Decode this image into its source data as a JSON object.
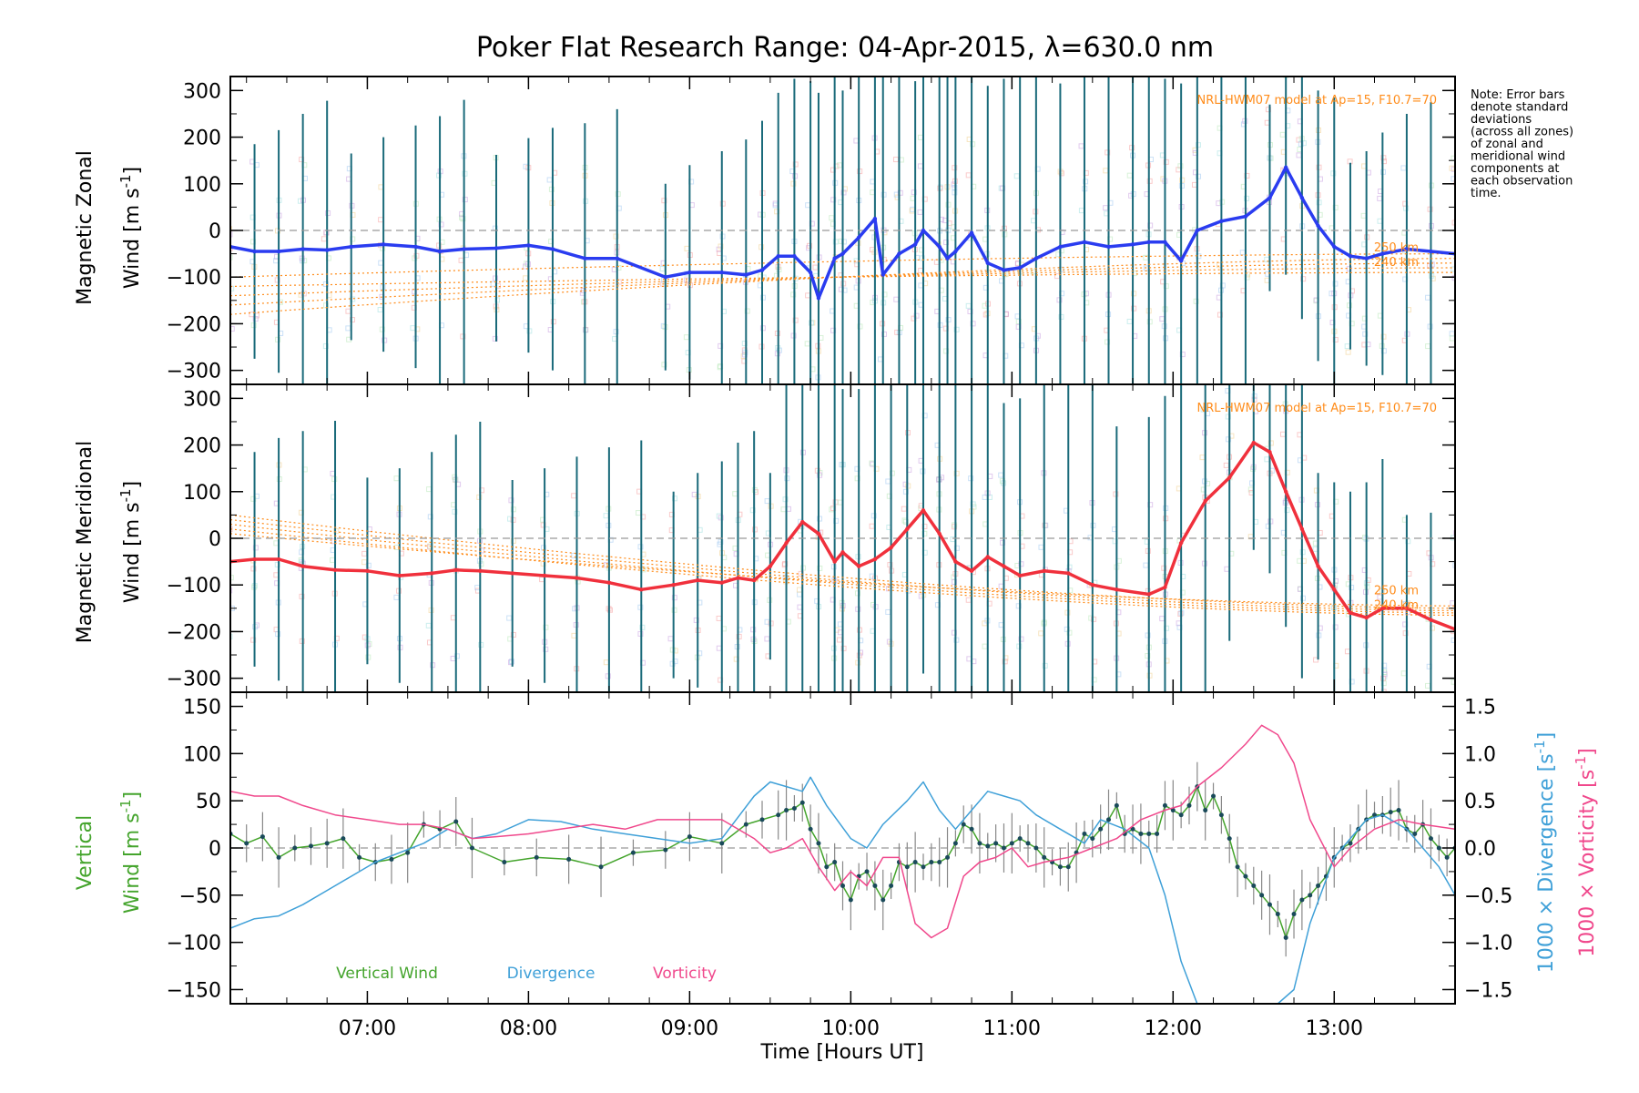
{
  "chart_data": {
    "title": "Poker Flat Research Range: 04-Apr-2015, λ=630.0 nm",
    "xlabel": "Time [Hours UT]",
    "xlim": [
      6.15,
      13.75
    ],
    "xticks": [
      "07:00",
      "08:00",
      "09:00",
      "10:00",
      "11:00",
      "12:00",
      "13:00"
    ],
    "xtick_values": [
      7,
      8,
      9,
      10,
      11,
      12,
      13
    ],
    "note": [
      "Note: Error bars",
      "denote standard",
      "deviations",
      "(across all zones)",
      "of zonal and",
      "meridional wind",
      "components at",
      "each observation",
      "time."
    ],
    "colors": {
      "zonal": "#2a3cf0",
      "meridional": "#f0303c",
      "vertical": "#44a42c",
      "divergence": "#3fa0d8",
      "vorticity": "#f0488c",
      "model": "#ff8c1a",
      "errorbar": "#1a6a7a",
      "zero_line": "#999999"
    },
    "panels": {
      "zonal": {
        "type": "line",
        "ylabel_line1": "Magnetic Zonal",
        "ylabel_line2": "Wind [m s",
        "ylabel_sup": "-1",
        "ylabel_end": "]",
        "ylim": [
          -330,
          330
        ],
        "yticks": [
          "300",
          "200",
          "100",
          "0",
          "−100",
          "−200",
          "−300"
        ],
        "ytick_values": [
          300,
          200,
          100,
          0,
          -100,
          -200,
          -300
        ],
        "model_label": "NRL-HWM07 model at Ap=15, F10.7=70",
        "model_heights": [
          "250 km",
          "240 km"
        ],
        "x": [
          6.15,
          6.3,
          6.45,
          6.6,
          6.75,
          6.9,
          7.1,
          7.3,
          7.45,
          7.6,
          7.8,
          8.0,
          8.15,
          8.35,
          8.55,
          8.85,
          9.0,
          9.2,
          9.35,
          9.45,
          9.55,
          9.65,
          9.75,
          9.8,
          9.9,
          9.95,
          10.05,
          10.15,
          10.2,
          10.3,
          10.4,
          10.45,
          10.55,
          10.6,
          10.65,
          10.75,
          10.85,
          10.95,
          11.05,
          11.15,
          11.3,
          11.45,
          11.6,
          11.75,
          11.85,
          11.95,
          12.05,
          12.15,
          12.3,
          12.45,
          12.6,
          12.7,
          12.8,
          12.9,
          13.0,
          13.1,
          13.2,
          13.3,
          13.45,
          13.6,
          13.75
        ],
        "y": [
          -35,
          -45,
          -45,
          -40,
          -42,
          -35,
          -30,
          -35,
          -45,
          -40,
          -38,
          -32,
          -40,
          -60,
          -60,
          -100,
          -90,
          -90,
          -95,
          -85,
          -55,
          -55,
          -90,
          -145,
          -60,
          -50,
          -15,
          25,
          -95,
          -50,
          -30,
          0,
          -35,
          -60,
          -45,
          -5,
          -70,
          -85,
          -80,
          -60,
          -35,
          -25,
          -35,
          -30,
          -25,
          -25,
          -65,
          0,
          20,
          30,
          70,
          135,
          70,
          10,
          -35,
          -55,
          -60,
          -50,
          -40,
          -45,
          -50
        ]
      },
      "meridional": {
        "type": "line",
        "ylabel_line1": "Magnetic Meridional",
        "ylabel_line2": "Wind [m s",
        "ylabel_sup": "-1",
        "ylabel_end": "]",
        "ylim": [
          -330,
          330
        ],
        "yticks": [
          "300",
          "200",
          "100",
          "0",
          "−100",
          "−200",
          "−300"
        ],
        "ytick_values": [
          300,
          200,
          100,
          0,
          -100,
          -200,
          -300
        ],
        "model_label": "NRL-HWM07 model at Ap=15, F10.7=70",
        "model_heights": [
          "250 km",
          "240 km"
        ],
        "x": [
          6.15,
          6.3,
          6.45,
          6.6,
          6.8,
          7.0,
          7.2,
          7.4,
          7.55,
          7.7,
          7.9,
          8.1,
          8.3,
          8.5,
          8.7,
          8.9,
          9.05,
          9.2,
          9.3,
          9.4,
          9.5,
          9.6,
          9.7,
          9.8,
          9.9,
          9.95,
          10.05,
          10.15,
          10.25,
          10.35,
          10.45,
          10.55,
          10.65,
          10.75,
          10.85,
          10.95,
          11.05,
          11.2,
          11.35,
          11.5,
          11.65,
          11.85,
          11.95,
          12.05,
          12.2,
          12.35,
          12.5,
          12.6,
          12.7,
          12.8,
          12.9,
          13.0,
          13.1,
          13.2,
          13.3,
          13.45,
          13.6,
          13.75
        ],
        "y": [
          -50,
          -45,
          -45,
          -60,
          -68,
          -70,
          -80,
          -75,
          -68,
          -70,
          -75,
          -80,
          -85,
          -95,
          -110,
          -100,
          -90,
          -95,
          -85,
          -90,
          -60,
          -10,
          35,
          10,
          -50,
          -30,
          -60,
          -45,
          -20,
          20,
          60,
          10,
          -50,
          -70,
          -40,
          -60,
          -80,
          -70,
          -75,
          -100,
          -110,
          -120,
          -105,
          -10,
          80,
          130,
          205,
          185,
          100,
          20,
          -60,
          -110,
          -160,
          -170,
          -150,
          -150,
          -175,
          -195
        ]
      },
      "bottom": {
        "ylabel_left1": "Vertical",
        "ylabel_left2": "Wind [m s",
        "ylabel_left_sup": "-1",
        "ylabel_left_end": "]",
        "ylabel_right1_pre": "1000 × Divergence [s",
        "ylabel_right2_pre": "1000 × Vorticity [s",
        "ylabel_right_sup": "-1",
        "ylabel_right_end": "]",
        "ylim": [
          -165,
          165
        ],
        "yticks": [
          "150",
          "100",
          "50",
          "0",
          "−50",
          "−100",
          "−150"
        ],
        "ytick_values": [
          150,
          100,
          50,
          0,
          -50,
          -100,
          -150
        ],
        "ylim_right": [
          -1.65,
          1.65
        ],
        "yticks_right": [
          "1.5",
          "1.0",
          "0.5",
          "0.0",
          "−0.5",
          "−1.0",
          "−1.5"
        ],
        "ytick_right_values": [
          1.5,
          1.0,
          0.5,
          0.0,
          -0.5,
          -1.0,
          -1.5
        ],
        "legend": [
          "Vertical Wind",
          "Divergence",
          "Vorticity"
        ],
        "series": [
          {
            "name": "Vertical Wind",
            "axis": "left",
            "x": [
              6.15,
              6.25,
              6.35,
              6.45,
              6.55,
              6.65,
              6.75,
              6.85,
              6.95,
              7.05,
              7.15,
              7.25,
              7.35,
              7.45,
              7.55,
              7.65,
              7.85,
              8.05,
              8.25,
              8.45,
              8.65,
              8.85,
              9.0,
              9.2,
              9.35,
              9.45,
              9.55,
              9.6,
              9.65,
              9.7,
              9.75,
              9.8,
              9.85,
              9.9,
              9.95,
              10.0,
              10.05,
              10.1,
              10.15,
              10.2,
              10.25,
              10.3,
              10.35,
              10.4,
              10.45,
              10.5,
              10.55,
              10.6,
              10.65,
              10.7,
              10.75,
              10.8,
              10.85,
              10.9,
              10.95,
              11.0,
              11.05,
              11.1,
              11.15,
              11.2,
              11.25,
              11.3,
              11.35,
              11.4,
              11.45,
              11.5,
              11.55,
              11.6,
              11.65,
              11.7,
              11.75,
              11.8,
              11.85,
              11.9,
              11.95,
              12.0,
              12.05,
              12.1,
              12.15,
              12.2,
              12.25,
              12.3,
              12.35,
              12.4,
              12.45,
              12.5,
              12.55,
              12.6,
              12.65,
              12.7,
              12.75,
              12.8,
              12.85,
              12.9,
              12.95,
              13.0,
              13.05,
              13.1,
              13.15,
              13.2,
              13.25,
              13.3,
              13.35,
              13.4,
              13.45,
              13.5,
              13.55,
              13.6,
              13.65,
              13.7,
              13.75
            ],
            "y": [
              15,
              5,
              12,
              -10,
              0,
              2,
              5,
              10,
              -10,
              -15,
              -12,
              -5,
              25,
              20,
              28,
              0,
              -15,
              -10,
              -12,
              -20,
              -5,
              -2,
              12,
              5,
              25,
              30,
              35,
              40,
              42,
              48,
              20,
              5,
              -20,
              -15,
              -40,
              -55,
              -30,
              -25,
              -40,
              -55,
              -40,
              -15,
              -20,
              -15,
              -20,
              -15,
              -15,
              -10,
              5,
              25,
              20,
              5,
              2,
              5,
              0,
              5,
              10,
              5,
              0,
              -10,
              -15,
              -20,
              -20,
              -5,
              15,
              10,
              20,
              30,
              45,
              15,
              20,
              15,
              15,
              15,
              45,
              40,
              35,
              45,
              65,
              40,
              55,
              35,
              10,
              -20,
              -30,
              -40,
              -50,
              -60,
              -70,
              -95,
              -70,
              -55,
              -50,
              -40,
              -30,
              -10,
              0,
              5,
              20,
              30,
              35,
              35,
              38,
              40,
              20,
              15,
              25,
              10,
              0,
              -10,
              0
            ]
          },
          {
            "name": "Divergence",
            "axis": "right",
            "x": [
              6.15,
              6.3,
              6.45,
              6.6,
              6.75,
              6.9,
              7.05,
              7.2,
              7.35,
              7.5,
              7.65,
              7.8,
              8.0,
              8.2,
              8.4,
              8.6,
              8.8,
              9.0,
              9.2,
              9.4,
              9.5,
              9.6,
              9.7,
              9.75,
              9.85,
              10.0,
              10.1,
              10.2,
              10.35,
              10.45,
              10.55,
              10.65,
              10.75,
              10.85,
              10.95,
              11.05,
              11.15,
              11.3,
              11.45,
              11.55,
              11.7,
              11.85,
              11.95,
              12.05,
              12.15,
              12.25,
              12.35,
              12.45,
              12.55,
              12.65,
              12.75,
              12.85,
              13.0,
              13.1,
              13.2,
              13.3,
              13.45,
              13.55,
              13.65,
              13.75
            ],
            "y": [
              -0.85,
              -0.75,
              -0.72,
              -0.6,
              -0.45,
              -0.3,
              -0.15,
              -0.05,
              0.05,
              0.2,
              0.1,
              0.15,
              0.3,
              0.28,
              0.2,
              0.15,
              0.1,
              0.05,
              0.1,
              0.55,
              0.7,
              0.65,
              0.6,
              0.75,
              0.45,
              0.1,
              0.0,
              0.25,
              0.5,
              0.7,
              0.4,
              0.2,
              0.4,
              0.6,
              0.55,
              0.5,
              0.35,
              0.2,
              0.05,
              0.3,
              0.2,
              0.0,
              -0.5,
              -1.2,
              -1.65,
              -1.65,
              -1.65,
              -1.65,
              -1.65,
              -1.65,
              -1.5,
              -0.8,
              -0.1,
              0.1,
              0.3,
              0.35,
              0.2,
              0.0,
              -0.2,
              -0.5
            ]
          },
          {
            "name": "Vorticity",
            "axis": "right",
            "x": [
              6.15,
              6.3,
              6.45,
              6.6,
              6.8,
              7.0,
              7.2,
              7.35,
              7.5,
              7.65,
              7.8,
              8.0,
              8.2,
              8.4,
              8.6,
              8.8,
              9.0,
              9.2,
              9.4,
              9.5,
              9.6,
              9.7,
              9.8,
              9.9,
              10.0,
              10.1,
              10.2,
              10.3,
              10.4,
              10.5,
              10.6,
              10.7,
              10.8,
              10.9,
              11.0,
              11.1,
              11.2,
              11.35,
              11.5,
              11.65,
              11.8,
              11.95,
              12.05,
              12.15,
              12.3,
              12.45,
              12.55,
              12.65,
              12.75,
              12.85,
              13.0,
              13.1,
              13.25,
              13.4,
              13.55,
              13.75
            ],
            "y": [
              0.6,
              0.55,
              0.55,
              0.45,
              0.35,
              0.3,
              0.25,
              0.25,
              0.2,
              0.1,
              0.12,
              0.15,
              0.2,
              0.25,
              0.2,
              0.3,
              0.3,
              0.3,
              0.1,
              -0.05,
              0.0,
              0.1,
              -0.2,
              -0.45,
              -0.25,
              -0.4,
              -0.1,
              -0.1,
              -0.8,
              -0.95,
              -0.85,
              -0.3,
              -0.15,
              -0.1,
              0.0,
              -0.2,
              -0.15,
              -0.1,
              0.0,
              0.1,
              0.3,
              0.4,
              0.45,
              0.65,
              0.85,
              1.1,
              1.3,
              1.2,
              0.9,
              0.3,
              -0.2,
              0.0,
              0.2,
              0.3,
              0.25,
              0.2
            ]
          }
        ]
      }
    }
  }
}
